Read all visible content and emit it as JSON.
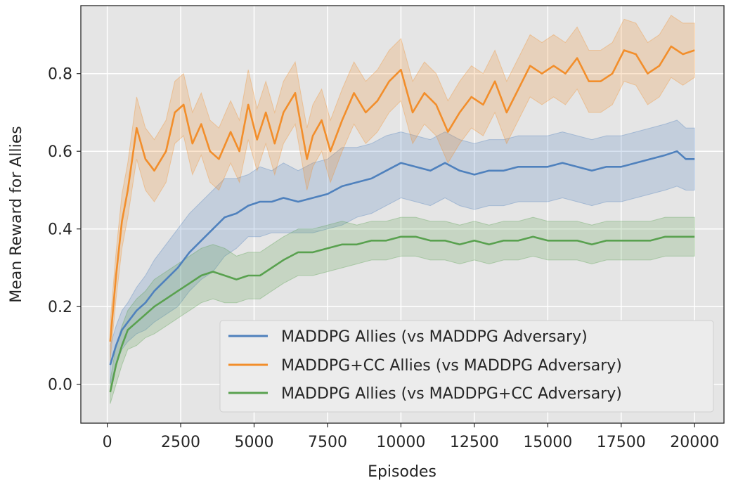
{
  "chart_data": {
    "type": "line",
    "title": "",
    "xlabel": "Episodes",
    "ylabel": "Mean Reward for Allies",
    "xlim": [
      -900,
      21000
    ],
    "ylim": [
      -0.1,
      0.975
    ],
    "xticks": [
      0,
      2500,
      5000,
      7500,
      10000,
      12500,
      15000,
      17500,
      20000
    ],
    "xtick_labels": [
      "0",
      "2500",
      "5000",
      "7500",
      "10000",
      "12500",
      "15000",
      "17500",
      "20000"
    ],
    "yticks": [
      0.0,
      0.2,
      0.4,
      0.6,
      0.8
    ],
    "ytick_labels": [
      "0.0",
      "0.2",
      "0.4",
      "0.6",
      "0.8"
    ],
    "grid": true,
    "legend_position": "lower-right",
    "series": [
      {
        "name": "MADDPG Allies (vs MADDPG Adversary)",
        "color": "#4f81bd",
        "x": [
          100,
          300,
          500,
          700,
          1000,
          1300,
          1600,
          2000,
          2400,
          2800,
          3200,
          3600,
          4000,
          4400,
          4800,
          5200,
          5600,
          6000,
          6500,
          7000,
          7500,
          8000,
          8500,
          9000,
          9500,
          10000,
          10500,
          11000,
          11500,
          12000,
          12500,
          13000,
          13500,
          14000,
          14500,
          15000,
          15500,
          16000,
          16500,
          17000,
          17500,
          18000,
          18500,
          19000,
          19400,
          19700,
          20000
        ],
        "mean": [
          0.05,
          0.1,
          0.14,
          0.16,
          0.19,
          0.21,
          0.24,
          0.27,
          0.3,
          0.34,
          0.37,
          0.4,
          0.43,
          0.44,
          0.46,
          0.47,
          0.47,
          0.48,
          0.47,
          0.48,
          0.49,
          0.51,
          0.52,
          0.53,
          0.55,
          0.57,
          0.56,
          0.55,
          0.57,
          0.55,
          0.54,
          0.55,
          0.55,
          0.56,
          0.56,
          0.56,
          0.57,
          0.56,
          0.55,
          0.56,
          0.56,
          0.57,
          0.58,
          0.59,
          0.6,
          0.58,
          0.58
        ],
        "lower": [
          0.0,
          0.05,
          0.09,
          0.11,
          0.13,
          0.14,
          0.16,
          0.18,
          0.2,
          0.24,
          0.27,
          0.29,
          0.33,
          0.35,
          0.38,
          0.38,
          0.39,
          0.39,
          0.39,
          0.39,
          0.4,
          0.41,
          0.43,
          0.44,
          0.46,
          0.48,
          0.47,
          0.46,
          0.48,
          0.46,
          0.45,
          0.46,
          0.46,
          0.47,
          0.47,
          0.47,
          0.48,
          0.47,
          0.46,
          0.47,
          0.47,
          0.48,
          0.49,
          0.5,
          0.51,
          0.5,
          0.5
        ],
        "upper": [
          0.1,
          0.15,
          0.19,
          0.21,
          0.25,
          0.28,
          0.32,
          0.36,
          0.4,
          0.44,
          0.47,
          0.5,
          0.53,
          0.53,
          0.54,
          0.56,
          0.55,
          0.57,
          0.55,
          0.57,
          0.58,
          0.61,
          0.61,
          0.62,
          0.64,
          0.65,
          0.64,
          0.63,
          0.65,
          0.63,
          0.62,
          0.63,
          0.63,
          0.64,
          0.64,
          0.64,
          0.65,
          0.64,
          0.63,
          0.64,
          0.64,
          0.65,
          0.66,
          0.67,
          0.68,
          0.66,
          0.66
        ]
      },
      {
        "name": "MADDPG+CC Allies (vs MADDPG Adversary)",
        "color": "#f28e2b",
        "x": [
          100,
          300,
          500,
          700,
          1000,
          1300,
          1600,
          2000,
          2300,
          2600,
          2900,
          3200,
          3500,
          3800,
          4200,
          4500,
          4800,
          5100,
          5400,
          5700,
          6000,
          6400,
          6800,
          7000,
          7300,
          7600,
          8000,
          8400,
          8800,
          9200,
          9600,
          10000,
          10400,
          10800,
          11200,
          11600,
          12000,
          12400,
          12800,
          13200,
          13600,
          14000,
          14400,
          14800,
          15200,
          15600,
          16000,
          16400,
          16800,
          17200,
          17600,
          18000,
          18400,
          18800,
          19200,
          19600,
          20000
        ],
        "mean": [
          0.11,
          0.28,
          0.42,
          0.5,
          0.66,
          0.58,
          0.55,
          0.6,
          0.7,
          0.72,
          0.62,
          0.67,
          0.6,
          0.58,
          0.65,
          0.6,
          0.72,
          0.63,
          0.7,
          0.62,
          0.7,
          0.75,
          0.58,
          0.64,
          0.68,
          0.6,
          0.68,
          0.75,
          0.7,
          0.73,
          0.78,
          0.81,
          0.7,
          0.75,
          0.72,
          0.65,
          0.7,
          0.74,
          0.72,
          0.78,
          0.7,
          0.76,
          0.82,
          0.8,
          0.82,
          0.8,
          0.84,
          0.78,
          0.78,
          0.8,
          0.86,
          0.85,
          0.8,
          0.82,
          0.87,
          0.85,
          0.86
        ],
        "lower": [
          0.06,
          0.22,
          0.35,
          0.43,
          0.58,
          0.5,
          0.47,
          0.52,
          0.62,
          0.64,
          0.54,
          0.59,
          0.52,
          0.5,
          0.57,
          0.52,
          0.63,
          0.55,
          0.62,
          0.54,
          0.62,
          0.67,
          0.5,
          0.56,
          0.6,
          0.52,
          0.6,
          0.67,
          0.62,
          0.65,
          0.7,
          0.73,
          0.62,
          0.67,
          0.64,
          0.57,
          0.62,
          0.66,
          0.64,
          0.7,
          0.62,
          0.68,
          0.74,
          0.72,
          0.74,
          0.72,
          0.76,
          0.7,
          0.7,
          0.72,
          0.78,
          0.77,
          0.72,
          0.74,
          0.79,
          0.77,
          0.79
        ],
        "upper": [
          0.16,
          0.34,
          0.49,
          0.57,
          0.74,
          0.66,
          0.63,
          0.68,
          0.78,
          0.8,
          0.7,
          0.75,
          0.68,
          0.66,
          0.73,
          0.68,
          0.81,
          0.71,
          0.78,
          0.7,
          0.78,
          0.83,
          0.66,
          0.72,
          0.76,
          0.68,
          0.76,
          0.83,
          0.78,
          0.81,
          0.86,
          0.89,
          0.78,
          0.83,
          0.8,
          0.73,
          0.78,
          0.82,
          0.8,
          0.86,
          0.78,
          0.84,
          0.9,
          0.88,
          0.9,
          0.88,
          0.92,
          0.86,
          0.86,
          0.88,
          0.94,
          0.93,
          0.88,
          0.9,
          0.95,
          0.93,
          0.93
        ]
      },
      {
        "name": "MADDPG Allies (vs MADDPG+CC Adversary)",
        "color": "#59a14f",
        "x": [
          100,
          300,
          500,
          700,
          1000,
          1300,
          1600,
          2000,
          2400,
          2800,
          3200,
          3600,
          4000,
          4400,
          4800,
          5200,
          5600,
          6000,
          6500,
          7000,
          7500,
          8000,
          8500,
          9000,
          9500,
          10000,
          10500,
          11000,
          11500,
          12000,
          12500,
          13000,
          13500,
          14000,
          14500,
          15000,
          15500,
          16000,
          16500,
          17000,
          17500,
          18000,
          18500,
          19000,
          19500,
          20000
        ],
        "mean": [
          -0.02,
          0.05,
          0.1,
          0.14,
          0.16,
          0.18,
          0.2,
          0.22,
          0.24,
          0.26,
          0.28,
          0.29,
          0.28,
          0.27,
          0.28,
          0.28,
          0.3,
          0.32,
          0.34,
          0.34,
          0.35,
          0.36,
          0.36,
          0.37,
          0.37,
          0.38,
          0.38,
          0.37,
          0.37,
          0.36,
          0.37,
          0.36,
          0.37,
          0.37,
          0.38,
          0.37,
          0.37,
          0.37,
          0.36,
          0.37,
          0.37,
          0.37,
          0.37,
          0.38,
          0.38,
          0.38
        ],
        "lower": [
          -0.05,
          0.0,
          0.05,
          0.09,
          0.1,
          0.12,
          0.13,
          0.15,
          0.17,
          0.19,
          0.21,
          0.22,
          0.21,
          0.21,
          0.22,
          0.22,
          0.24,
          0.26,
          0.28,
          0.28,
          0.29,
          0.3,
          0.31,
          0.32,
          0.32,
          0.33,
          0.33,
          0.32,
          0.32,
          0.31,
          0.32,
          0.31,
          0.32,
          0.32,
          0.33,
          0.32,
          0.32,
          0.32,
          0.31,
          0.32,
          0.32,
          0.32,
          0.32,
          0.33,
          0.33,
          0.33
        ],
        "upper": [
          0.01,
          0.1,
          0.15,
          0.19,
          0.22,
          0.24,
          0.27,
          0.29,
          0.31,
          0.33,
          0.35,
          0.36,
          0.35,
          0.33,
          0.34,
          0.34,
          0.36,
          0.38,
          0.4,
          0.4,
          0.41,
          0.42,
          0.41,
          0.42,
          0.42,
          0.43,
          0.43,
          0.42,
          0.42,
          0.41,
          0.42,
          0.41,
          0.42,
          0.42,
          0.43,
          0.42,
          0.42,
          0.42,
          0.41,
          0.42,
          0.42,
          0.42,
          0.42,
          0.43,
          0.43,
          0.43
        ]
      }
    ]
  }
}
